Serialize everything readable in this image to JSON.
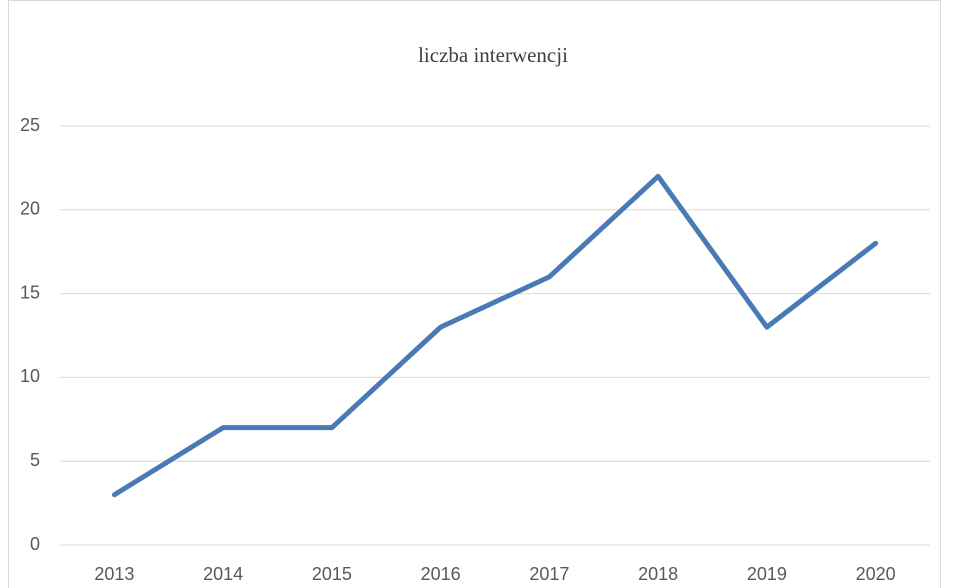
{
  "chart_data": {
    "type": "line",
    "title": "liczba interwencji",
    "categories": [
      "2013",
      "2014",
      "2015",
      "2016",
      "2017",
      "2018",
      "2019",
      "2020"
    ],
    "values": [
      3,
      7,
      7,
      13,
      16,
      22,
      13,
      18
    ],
    "color": "#4a7ab5",
    "ylim": [
      0,
      25
    ],
    "yticks": [
      0,
      5,
      10,
      15,
      20,
      25
    ],
    "grid": true
  }
}
